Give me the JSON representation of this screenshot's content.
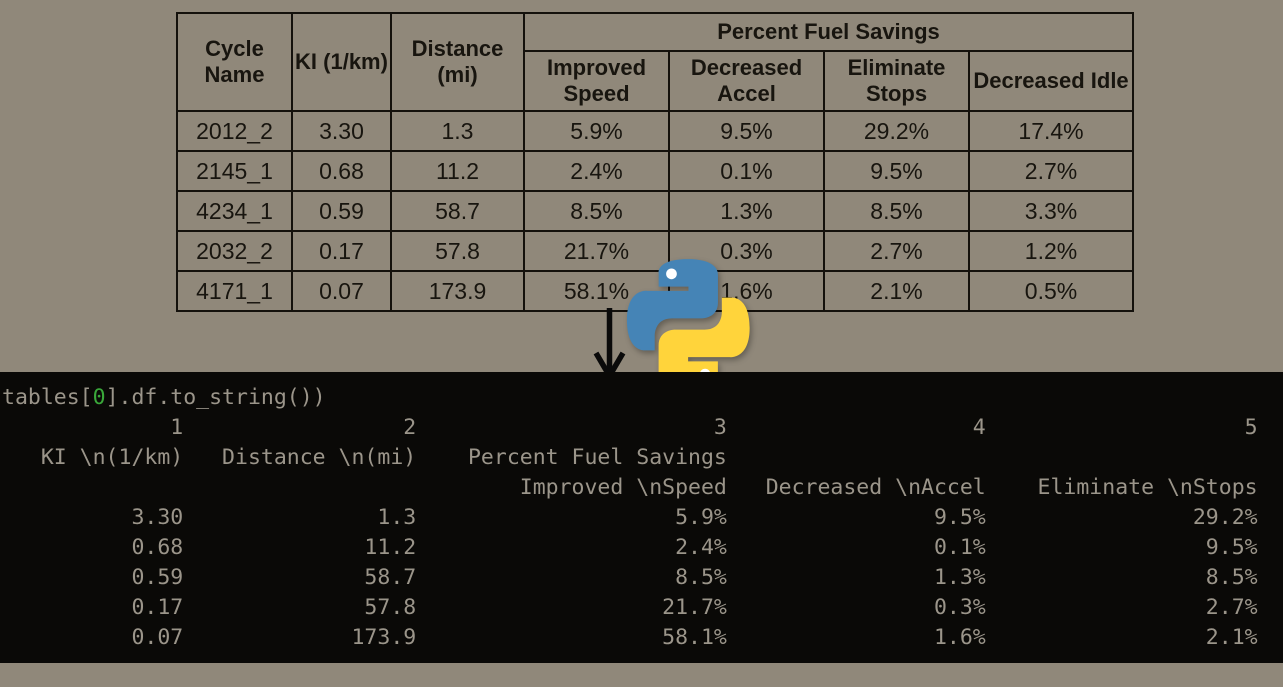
{
  "page": {
    "background": "#90887a"
  },
  "table": {
    "headers": {
      "cycle_name": "Cycle Name",
      "ki": "KI (1/km)",
      "distance": "Distance (mi)",
      "group": "Percent Fuel Savings",
      "improved_speed": "Improved Speed",
      "decreased_accel": "Decreased Accel",
      "eliminate_stops": "Eliminate Stops",
      "decreased_idle": "Decreased Idle"
    },
    "rows": [
      [
        "2012_2",
        "3.30",
        "1.3",
        "5.9%",
        "9.5%",
        "29.2%",
        "17.4%"
      ],
      [
        "2145_1",
        "0.68",
        "11.2",
        "2.4%",
        "0.1%",
        "9.5%",
        "2.7%"
      ],
      [
        "4234_1",
        "0.59",
        "58.7",
        "8.5%",
        "1.3%",
        "8.5%",
        "3.3%"
      ],
      [
        "2032_2",
        "0.17",
        "57.8",
        "21.7%",
        "0.3%",
        "2.7%",
        "1.2%"
      ],
      [
        "4171_1",
        "0.07",
        "173.9",
        "58.1%",
        "1.6%",
        "2.1%",
        "0.5%"
      ]
    ]
  },
  "python_logo": {
    "blue": "#4584b6",
    "yellow": "#ffd43b"
  },
  "console": {
    "background": "#0a0907",
    "text_color": "#9b958a",
    "zero_color": "#3aa83a",
    "command_prefix": "tables[",
    "command_zero": "0",
    "command_suffix": "].df.to_string())",
    "column_indices": [
      "1",
      "2",
      "3",
      "4",
      "5"
    ],
    "header_row_1": [
      "KI \\n(1/km)",
      "Distance \\n(mi)",
      "Percent Fuel Savings"
    ],
    "header_row_2": [
      "Improved \\nSpeed",
      "Decreased \\nAccel",
      "Eliminate \\nStops"
    ],
    "rows": [
      [
        "3.30",
        "1.3",
        "5.9%",
        "9.5%",
        "29.2%"
      ],
      [
        "0.68",
        "11.2",
        "2.4%",
        "0.1%",
        "9.5%"
      ],
      [
        "0.59",
        "58.7",
        "8.5%",
        "1.3%",
        "8.5%"
      ],
      [
        "0.17",
        "57.8",
        "21.7%",
        "0.3%",
        "2.7%"
      ],
      [
        "0.07",
        "173.9",
        "58.1%",
        "1.6%",
        "2.1%"
      ]
    ]
  }
}
